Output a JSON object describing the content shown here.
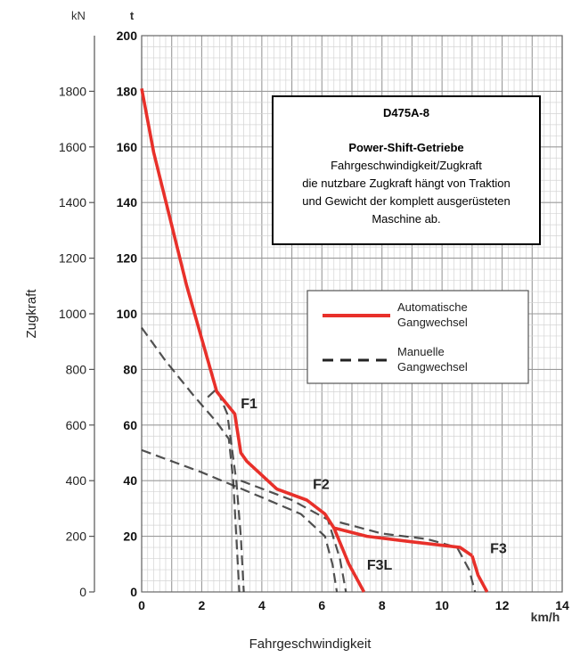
{
  "chart_data": {
    "type": "line",
    "xlabel": "Fahrgeschwindigkeit",
    "ylabel": "Zugkraft",
    "x_unit": "km/h",
    "y_unit_left": "kN",
    "y_unit_right": "t",
    "xlim": [
      0,
      14
    ],
    "ylim_t": [
      0,
      200
    ],
    "x_ticks": [
      "0",
      "2",
      "4",
      "6",
      "8",
      "10",
      "12",
      "14"
    ],
    "kn_ticks": [
      {
        "label": "0",
        "t": 0
      },
      {
        "label": "200",
        "t": 20
      },
      {
        "label": "400",
        "t": 40
      },
      {
        "label": "600",
        "t": 60
      },
      {
        "label": "800",
        "t": 80
      },
      {
        "label": "1000",
        "t": 100
      },
      {
        "label": "1200",
        "t": 120
      },
      {
        "label": "1400",
        "t": 140
      },
      {
        "label": "1600",
        "t": 160
      },
      {
        "label": "1800",
        "t": 180
      }
    ],
    "t_ticks": [
      "0",
      "20",
      "40",
      "60",
      "80",
      "100",
      "120",
      "140",
      "160",
      "180",
      "200"
    ],
    "grid": true,
    "series": [
      {
        "name": "Automatische Gangwechsel",
        "style": "solid",
        "color": "#e8302a",
        "x": [
          0,
          0.4,
          1.5,
          2.5,
          3.1,
          3.3,
          3.5,
          4.5,
          5.5,
          6.1,
          6.4,
          7.5,
          9,
          10.6,
          11
        ],
        "y": [
          181,
          158,
          110,
          72,
          64,
          50,
          47,
          37,
          33,
          28,
          23,
          20,
          18,
          16,
          13
        ]
      },
      {
        "name": "Automatische Gangwechsel",
        "style": "solid",
        "color": "#e8302a",
        "x": [
          11,
          11.2,
          11.5
        ],
        "y": [
          13,
          6,
          0
        ]
      },
      {
        "name": "Automatische Gangwechsel",
        "style": "solid",
        "color": "#e8302a",
        "x": [
          6.4,
          6.9,
          7.4
        ],
        "y": [
          23,
          10,
          0
        ]
      },
      {
        "name": "Manuelle Gangwechsel",
        "style": "dashed",
        "color": "#333333",
        "x": [
          0,
          0.8,
          1.7,
          2.5,
          2.9,
          3.05,
          3.15,
          3.25
        ],
        "y": [
          95,
          83,
          71,
          61,
          55,
          40,
          20,
          0
        ]
      },
      {
        "name": "Manuelle Gangwechsel",
        "style": "dashed",
        "color": "#333333",
        "x": [
          2.2,
          2.5,
          2.85,
          3.15,
          3.3,
          3.4
        ],
        "y": [
          70,
          73,
          64,
          40,
          20,
          0
        ]
      },
      {
        "name": "Manuelle Gangwechsel",
        "style": "dashed",
        "color": "#333333",
        "x": [
          0,
          2,
          4,
          5.3,
          6.1,
          6.35,
          6.5
        ],
        "y": [
          51,
          43,
          34,
          28,
          20,
          10,
          0
        ]
      },
      {
        "name": "Manuelle Gangwechsel",
        "style": "dashed",
        "color": "#333333",
        "x": [
          3.3,
          5,
          6.2,
          6.6,
          6.8
        ],
        "y": [
          40,
          33,
          26,
          12,
          0
        ]
      },
      {
        "name": "Manuelle Gangwechsel",
        "style": "dashed",
        "color": "#333333",
        "x": [
          6.6,
          8,
          9.5,
          10.5,
          10.9,
          11.1
        ],
        "y": [
          25,
          21,
          19,
          16,
          8,
          0
        ]
      }
    ],
    "curve_labels": [
      {
        "text": "F1",
        "x": 3.3,
        "y": 66
      },
      {
        "text": "F2",
        "x": 5.7,
        "y": 37
      },
      {
        "text": "F3",
        "x": 11.6,
        "y": 14
      },
      {
        "text": "F3L",
        "x": 7.5,
        "y": 8
      }
    ],
    "info_box": {
      "title": "D475A-8",
      "subtitle": "Power-Shift-Getriebe",
      "lines": [
        "Fahrgeschwindigkeit/Zugkraft",
        "die nutzbare Zugkraft hängt von Traktion",
        "und Gewicht der komplett ausgerüsteten",
        "Maschine ab."
      ]
    },
    "legend": [
      {
        "label_lines": [
          "Automatische",
          "Gangwechsel"
        ],
        "style": "solid",
        "color": "#e8302a"
      },
      {
        "label_lines": [
          "Manuelle",
          "Gangwechsel"
        ],
        "style": "dashed",
        "color": "#222222"
      }
    ]
  }
}
